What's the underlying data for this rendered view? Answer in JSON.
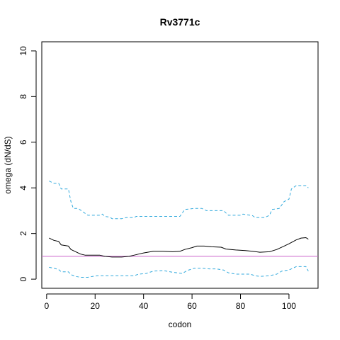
{
  "chart_data": {
    "type": "line",
    "title": "Rv3771c",
    "xlabel": "codon",
    "ylabel": "omega (dN/dS)",
    "xlim": [
      -2,
      112
    ],
    "ylim": [
      -0.4,
      10.4
    ],
    "x_ticks": [
      0,
      20,
      40,
      60,
      80,
      100
    ],
    "y_ticks": [
      0,
      2,
      4,
      6,
      8,
      10
    ],
    "reference_line": {
      "y": 1,
      "color": "#cc66cc"
    },
    "series": [
      {
        "role": "upper-bound",
        "style": "dashed",
        "color": "#33aadd",
        "points": [
          [
            1,
            4.3
          ],
          [
            3,
            4.2
          ],
          [
            5,
            4.2
          ],
          [
            6,
            3.95
          ],
          [
            9,
            3.95
          ],
          [
            10,
            3.4
          ],
          [
            11,
            3.1
          ],
          [
            13,
            3.1
          ],
          [
            15,
            2.95
          ],
          [
            17,
            2.8
          ],
          [
            22,
            2.8
          ],
          [
            23,
            2.85
          ],
          [
            24,
            2.75
          ],
          [
            26,
            2.72
          ],
          [
            27,
            2.65
          ],
          [
            31,
            2.65
          ],
          [
            33,
            2.7
          ],
          [
            36,
            2.7
          ],
          [
            37,
            2.75
          ],
          [
            55,
            2.75
          ],
          [
            57,
            3.05
          ],
          [
            61,
            3.1
          ],
          [
            64,
            3.1
          ],
          [
            66,
            3.0
          ],
          [
            73,
            3.0
          ],
          [
            75,
            2.8
          ],
          [
            80,
            2.8
          ],
          [
            81,
            2.85
          ],
          [
            85,
            2.78
          ],
          [
            86,
            2.7
          ],
          [
            90,
            2.7
          ],
          [
            92,
            2.8
          ],
          [
            93,
            3.05
          ],
          [
            96,
            3.1
          ],
          [
            98,
            3.4
          ],
          [
            100,
            3.5
          ],
          [
            101,
            3.95
          ],
          [
            103,
            4.1
          ],
          [
            107,
            4.1
          ],
          [
            108,
            4.0
          ]
        ]
      },
      {
        "role": "estimate",
        "style": "solid",
        "color": "#000000",
        "points": [
          [
            1,
            1.8
          ],
          [
            3,
            1.7
          ],
          [
            5,
            1.65
          ],
          [
            6,
            1.5
          ],
          [
            9,
            1.45
          ],
          [
            10,
            1.3
          ],
          [
            12,
            1.2
          ],
          [
            14,
            1.1
          ],
          [
            16,
            1.05
          ],
          [
            20,
            1.05
          ],
          [
            22,
            1.05
          ],
          [
            24,
            1.0
          ],
          [
            27,
            0.97
          ],
          [
            31,
            0.97
          ],
          [
            34,
            1.0
          ],
          [
            36,
            1.05
          ],
          [
            38,
            1.1
          ],
          [
            40,
            1.15
          ],
          [
            44,
            1.22
          ],
          [
            48,
            1.22
          ],
          [
            52,
            1.2
          ],
          [
            55,
            1.22
          ],
          [
            57,
            1.3
          ],
          [
            60,
            1.38
          ],
          [
            62,
            1.45
          ],
          [
            65,
            1.45
          ],
          [
            68,
            1.42
          ],
          [
            72,
            1.4
          ],
          [
            74,
            1.32
          ],
          [
            78,
            1.28
          ],
          [
            82,
            1.25
          ],
          [
            85,
            1.22
          ],
          [
            88,
            1.18
          ],
          [
            92,
            1.2
          ],
          [
            95,
            1.3
          ],
          [
            98,
            1.45
          ],
          [
            100,
            1.55
          ],
          [
            103,
            1.72
          ],
          [
            105,
            1.8
          ],
          [
            107,
            1.82
          ],
          [
            108,
            1.75
          ]
        ]
      },
      {
        "role": "lower-bound",
        "style": "dashed",
        "color": "#33aadd",
        "points": [
          [
            1,
            0.52
          ],
          [
            3,
            0.48
          ],
          [
            5,
            0.42
          ],
          [
            6,
            0.32
          ],
          [
            9,
            0.32
          ],
          [
            10,
            0.2
          ],
          [
            12,
            0.12
          ],
          [
            14,
            0.08
          ],
          [
            17,
            0.08
          ],
          [
            19,
            0.12
          ],
          [
            21,
            0.15
          ],
          [
            36,
            0.15
          ],
          [
            38,
            0.22
          ],
          [
            41,
            0.25
          ],
          [
            44,
            0.35
          ],
          [
            48,
            0.38
          ],
          [
            52,
            0.3
          ],
          [
            56,
            0.25
          ],
          [
            58,
            0.38
          ],
          [
            61,
            0.48
          ],
          [
            64,
            0.48
          ],
          [
            67,
            0.45
          ],
          [
            70,
            0.45
          ],
          [
            73,
            0.4
          ],
          [
            75,
            0.28
          ],
          [
            78,
            0.22
          ],
          [
            84,
            0.22
          ],
          [
            86,
            0.15
          ],
          [
            88,
            0.12
          ],
          [
            92,
            0.15
          ],
          [
            95,
            0.22
          ],
          [
            97,
            0.35
          ],
          [
            100,
            0.4
          ],
          [
            103,
            0.55
          ],
          [
            107,
            0.55
          ],
          [
            108,
            0.35
          ]
        ]
      }
    ]
  }
}
